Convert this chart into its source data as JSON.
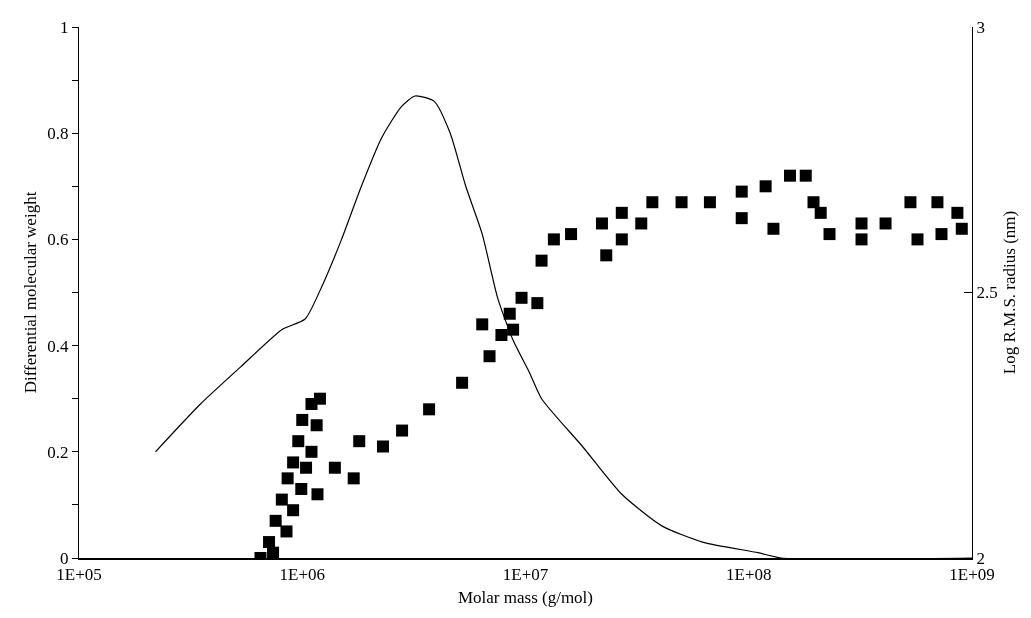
{
  "chart_data": {
    "type": "line",
    "xlabel": "Molar mass (g/mol)",
    "ylabel": "Differential molecular weight",
    "y2label": "Log R.M.S. radius (nm)",
    "log": "x",
    "grid": false,
    "xlim": [
      100000,
      1000000000
    ],
    "xticks": [
      {
        "value": 100000,
        "label": "1E+05"
      },
      {
        "value": 1000000,
        "label": "1E+06"
      },
      {
        "value": 10000000,
        "label": "1E+07"
      },
      {
        "value": 100000000,
        "label": "1E+08"
      },
      {
        "value": 1000000000,
        "label": "1E+09"
      }
    ],
    "ylim": [
      0,
      1
    ],
    "yticks": [
      0,
      {
        "value": 0.1,
        "label": null
      },
      0.2,
      {
        "value": 0.3,
        "label": null
      },
      0.4,
      {
        "value": 0.5,
        "label": null
      },
      0.6,
      {
        "value": 0.7,
        "label": null
      },
      0.8,
      {
        "value": 0.9,
        "label": null
      },
      1
    ],
    "y2lim": [
      2,
      3
    ],
    "y2ticks": [
      2,
      2.5,
      3
    ],
    "series": [
      {
        "color": "#000000",
        "marker": "none",
        "line_style": "solid",
        "x": [
          220000,
          350000,
          530000,
          810000,
          1030000,
          1220000,
          1500000,
          1840000,
          2260000,
          2780000,
          3200000,
          3900000,
          4600000,
          5400000,
          6400000,
          7500000,
          8800000,
          10400000,
          11800000,
          18000000,
          27000000,
          41000000,
          62000000,
          110000000,
          140000000,
          1000000000
        ],
        "values": [
          0.2,
          0.29,
          0.36,
          0.43,
          0.45,
          0.51,
          0.6,
          0.7,
          0.79,
          0.85,
          0.87,
          0.86,
          0.8,
          0.7,
          0.61,
          0.49,
          0.41,
          0.35,
          0.3,
          0.21,
          0.12,
          0.06,
          0.03,
          0.01,
          0,
          0
        ]
      },
      {
        "type": "scatter",
        "axis": "y2",
        "color": "#000000",
        "marker": "square",
        "x": [
          650000,
          710000,
          760000,
          810000,
          860000,
          910000,
          960000,
          1000000,
          1100000,
          1200000,
          740000,
          850000,
          910000,
          990000,
          1040000,
          1100000,
          1160000,
          1170000,
          1400000,
          1800000,
          1700000,
          2300000,
          2800000,
          3700000,
          5200000,
          6900000,
          7800000,
          8800000,
          6400000,
          9600000,
          8500000,
          11300000,
          11800000,
          13400000,
          16000000,
          22000000,
          23000000,
          27000000,
          33000000,
          27000000,
          37000000,
          50000000,
          67000000,
          93000000,
          119000000,
          153000000,
          180000000,
          93000000,
          129000000,
          195000000,
          210000000,
          230000000,
          320000000,
          320000000,
          410000000,
          530000000,
          570000000,
          700000000,
          730000000,
          860000000,
          900000000
        ],
        "values": [
          2.0,
          2.03,
          2.07,
          2.11,
          2.15,
          2.18,
          2.22,
          2.26,
          2.29,
          2.3,
          2.01,
          2.05,
          2.09,
          2.13,
          2.17,
          2.2,
          2.25,
          2.12,
          2.17,
          2.22,
          2.15,
          2.21,
          2.24,
          2.28,
          2.33,
          2.38,
          2.42,
          2.43,
          2.44,
          2.49,
          2.46,
          2.48,
          2.56,
          2.6,
          2.61,
          2.63,
          2.57,
          2.6,
          2.63,
          2.65,
          2.67,
          2.67,
          2.67,
          2.69,
          2.7,
          2.72,
          2.72,
          2.64,
          2.62,
          2.67,
          2.65,
          2.61,
          2.63,
          2.6,
          2.63,
          2.67,
          2.6,
          2.67,
          2.61,
          2.65,
          2.62
        ]
      }
    ]
  }
}
